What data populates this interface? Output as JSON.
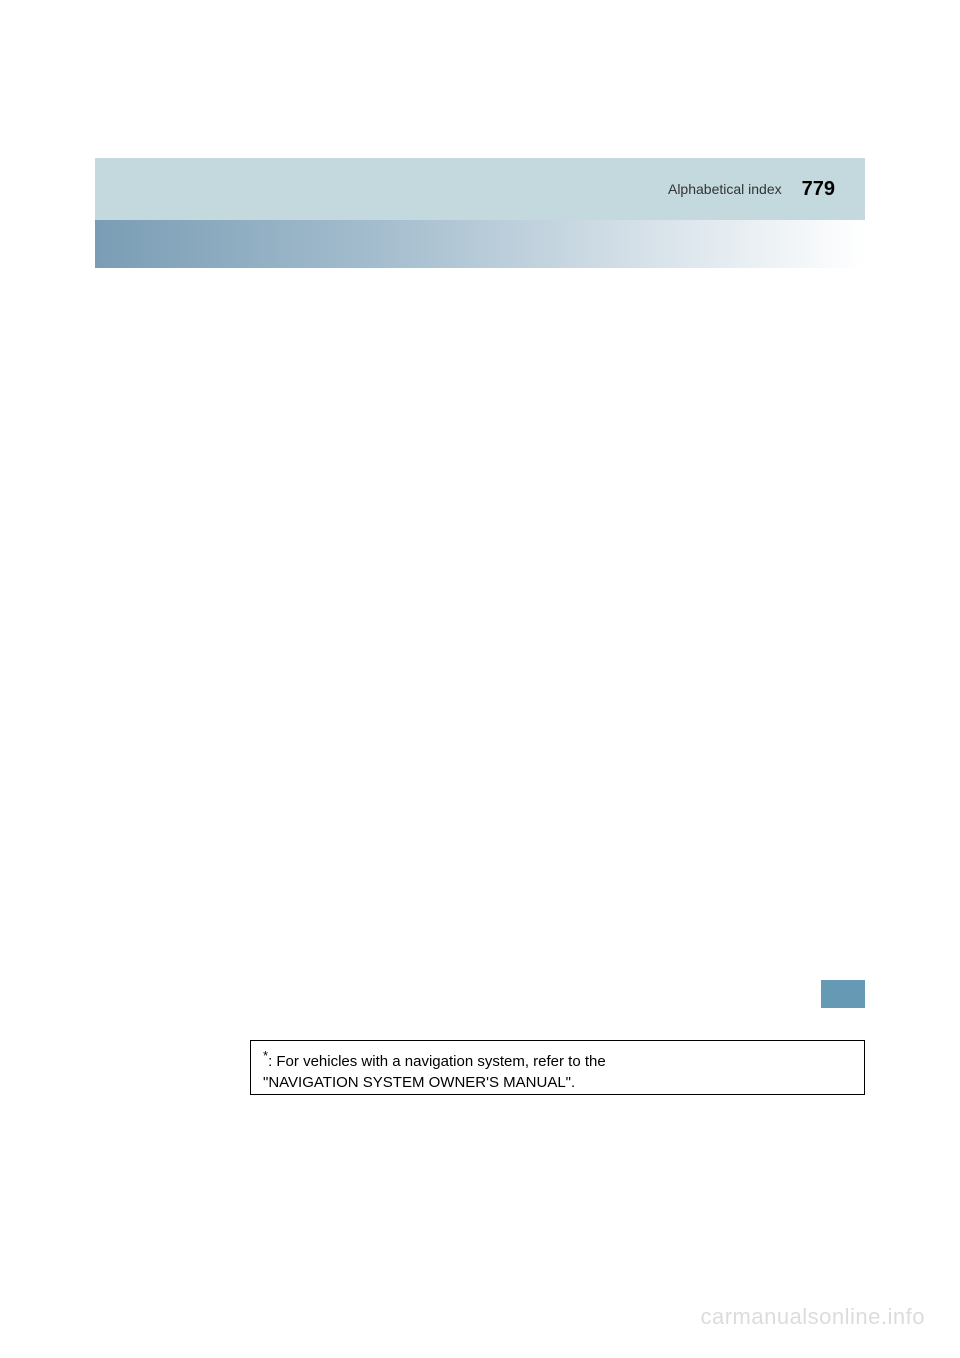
{
  "header": {
    "section_title": "Alphabetical index",
    "page_number": "779",
    "bar_bg_color": "#c3d9de",
    "gradient_start": "#7a9db5",
    "gradient_end": "#ffffff"
  },
  "side_tab": {
    "bg_color": "#6699b3"
  },
  "footnote": {
    "marker": "*",
    "line1": ": For vehicles with a navigation system, refer to the",
    "line2": "\"NAVIGATION SYSTEM OWNER'S MANUAL\"."
  },
  "watermark": {
    "text": "carmanualsonline.info",
    "color": "#dcdcdc"
  }
}
